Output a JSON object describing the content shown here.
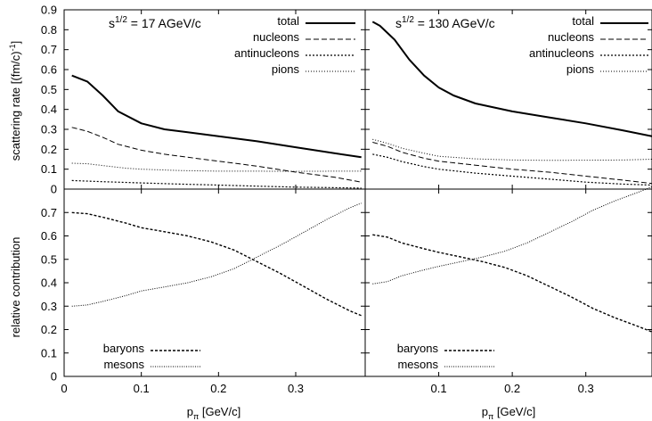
{
  "y_label_top": "scattering rate [(fm/c)",
  "y_label_top_sup": "-1",
  "y_label_top_end": "]",
  "y_label_bottom": "relative contribution",
  "x_label_base": "p",
  "x_label_sub": "π",
  "x_label_rest": " [GeV/c]",
  "energy_base": "s",
  "energy_sup": "1/2",
  "energy_left": " = 17 AGeV/c",
  "energy_right": " = 130 AGeV/c",
  "legend_top": [
    "total",
    "nucleons",
    "antinucleons",
    "pions"
  ],
  "legend_bottom": [
    "baryons",
    "mesons"
  ],
  "chart_data": [
    {
      "type": "line",
      "panel": "top-left",
      "xlim": [
        0,
        0.39
      ],
      "ylim": [
        0,
        0.9
      ],
      "x_ticks": [
        "0",
        "0.1",
        "0.2",
        "0.3"
      ],
      "y_ticks": [
        "0",
        "0.1",
        "0.2",
        "0.3",
        "0.4",
        "0.5",
        "0.6",
        "0.7",
        "0.8",
        "0.9"
      ],
      "series": [
        {
          "name": "total",
          "x": [
            0.01,
            0.03,
            0.05,
            0.07,
            0.1,
            0.13,
            0.16,
            0.2,
            0.25,
            0.3,
            0.35,
            0.385
          ],
          "y": [
            0.57,
            0.54,
            0.47,
            0.39,
            0.33,
            0.3,
            0.285,
            0.265,
            0.24,
            0.21,
            0.18,
            0.16
          ]
        },
        {
          "name": "nucleons",
          "x": [
            0.01,
            0.03,
            0.05,
            0.07,
            0.1,
            0.13,
            0.16,
            0.2,
            0.25,
            0.3,
            0.35,
            0.385
          ],
          "y": [
            0.31,
            0.29,
            0.26,
            0.225,
            0.195,
            0.175,
            0.16,
            0.14,
            0.115,
            0.085,
            0.06,
            0.035
          ]
        },
        {
          "name": "antinucleons",
          "x": [
            0.01,
            0.05,
            0.1,
            0.15,
            0.2,
            0.25,
            0.3,
            0.35,
            0.385
          ],
          "y": [
            0.043,
            0.037,
            0.031,
            0.025,
            0.02,
            0.015,
            0.01,
            0.007,
            0.005
          ]
        },
        {
          "name": "pions",
          "x": [
            0.01,
            0.03,
            0.05,
            0.08,
            0.1,
            0.15,
            0.2,
            0.25,
            0.3,
            0.35,
            0.385
          ],
          "y": [
            0.13,
            0.127,
            0.118,
            0.105,
            0.1,
            0.093,
            0.09,
            0.09,
            0.089,
            0.09,
            0.09
          ]
        }
      ]
    },
    {
      "type": "line",
      "panel": "top-right",
      "xlim": [
        0,
        0.39
      ],
      "ylim": [
        0,
        0.9
      ],
      "x_ticks": [
        "0.1",
        "0.2",
        "0.3"
      ],
      "series": [
        {
          "name": "total",
          "x": [
            0.01,
            0.02,
            0.04,
            0.06,
            0.08,
            0.1,
            0.12,
            0.15,
            0.2,
            0.25,
            0.3,
            0.35,
            0.39
          ],
          "y": [
            0.84,
            0.82,
            0.75,
            0.65,
            0.57,
            0.51,
            0.47,
            0.43,
            0.39,
            0.36,
            0.33,
            0.295,
            0.265
          ]
        },
        {
          "name": "nucleons",
          "x": [
            0.01,
            0.03,
            0.05,
            0.08,
            0.1,
            0.15,
            0.2,
            0.25,
            0.3,
            0.35,
            0.39
          ],
          "y": [
            0.235,
            0.215,
            0.185,
            0.155,
            0.14,
            0.12,
            0.1,
            0.085,
            0.065,
            0.045,
            0.028
          ]
        },
        {
          "name": "antinucleons",
          "x": [
            0.01,
            0.03,
            0.05,
            0.08,
            0.1,
            0.15,
            0.2,
            0.25,
            0.3,
            0.35,
            0.39
          ],
          "y": [
            0.175,
            0.16,
            0.138,
            0.113,
            0.1,
            0.08,
            0.065,
            0.05,
            0.035,
            0.025,
            0.02
          ]
        },
        {
          "name": "pions",
          "x": [
            0.01,
            0.03,
            0.05,
            0.08,
            0.1,
            0.15,
            0.2,
            0.25,
            0.3,
            0.35,
            0.39
          ],
          "y": [
            0.25,
            0.23,
            0.205,
            0.18,
            0.165,
            0.152,
            0.146,
            0.144,
            0.145,
            0.146,
            0.15
          ]
        }
      ]
    },
    {
      "type": "line",
      "panel": "bottom-left",
      "xlim": [
        0,
        0.39
      ],
      "ylim": [
        0,
        0.8
      ],
      "x_ticks": [
        "0",
        "0.1",
        "0.2",
        "0.3"
      ],
      "y_ticks": [
        "0",
        "0.1",
        "0.2",
        "0.3",
        "0.4",
        "0.5",
        "0.6",
        "0.7"
      ],
      "series": [
        {
          "name": "baryons",
          "x": [
            0.01,
            0.03,
            0.05,
            0.08,
            0.1,
            0.13,
            0.16,
            0.19,
            0.22,
            0.25,
            0.28,
            0.31,
            0.34,
            0.37,
            0.385
          ],
          "y": [
            0.7,
            0.695,
            0.68,
            0.655,
            0.635,
            0.618,
            0.6,
            0.575,
            0.54,
            0.49,
            0.44,
            0.385,
            0.33,
            0.28,
            0.26
          ]
        },
        {
          "name": "mesons",
          "x": [
            0.01,
            0.03,
            0.05,
            0.08,
            0.1,
            0.13,
            0.16,
            0.19,
            0.22,
            0.25,
            0.28,
            0.31,
            0.34,
            0.37,
            0.385
          ],
          "y": [
            0.3,
            0.305,
            0.32,
            0.345,
            0.365,
            0.382,
            0.4,
            0.425,
            0.46,
            0.51,
            0.56,
            0.615,
            0.67,
            0.72,
            0.74
          ]
        }
      ]
    },
    {
      "type": "line",
      "panel": "bottom-right",
      "xlim": [
        0,
        0.39
      ],
      "ylim": [
        0,
        0.8
      ],
      "x_ticks": [
        "0.1",
        "0.2",
        "0.3"
      ],
      "series": [
        {
          "name": "baryons",
          "x": [
            0.01,
            0.03,
            0.05,
            0.08,
            0.1,
            0.13,
            0.16,
            0.19,
            0.22,
            0.25,
            0.28,
            0.31,
            0.34,
            0.37,
            0.39
          ],
          "y": [
            0.605,
            0.595,
            0.57,
            0.545,
            0.53,
            0.51,
            0.49,
            0.465,
            0.43,
            0.385,
            0.34,
            0.29,
            0.25,
            0.215,
            0.19
          ]
        },
        {
          "name": "mesons",
          "x": [
            0.01,
            0.03,
            0.05,
            0.08,
            0.1,
            0.13,
            0.16,
            0.19,
            0.22,
            0.25,
            0.28,
            0.31,
            0.34,
            0.37,
            0.39
          ],
          "y": [
            0.395,
            0.405,
            0.43,
            0.455,
            0.47,
            0.49,
            0.51,
            0.535,
            0.57,
            0.615,
            0.66,
            0.71,
            0.75,
            0.785,
            0.81
          ]
        }
      ]
    }
  ],
  "series_styles": {
    "total": {
      "color": "#000000",
      "dash": "none",
      "width": 2
    },
    "nucleons": {
      "color": "#000000",
      "dash": "6,3",
      "width": 1
    },
    "antinucleons": {
      "color": "#000000",
      "dash": "2,2",
      "width": 1.2
    },
    "pions": {
      "color": "#000000",
      "dash": "1,2",
      "width": 1
    },
    "baryons": {
      "color": "#000000",
      "dash": "3,2",
      "width": 1.4
    },
    "mesons": {
      "color": "#000000",
      "dash": "1,1.5",
      "width": 1
    }
  }
}
